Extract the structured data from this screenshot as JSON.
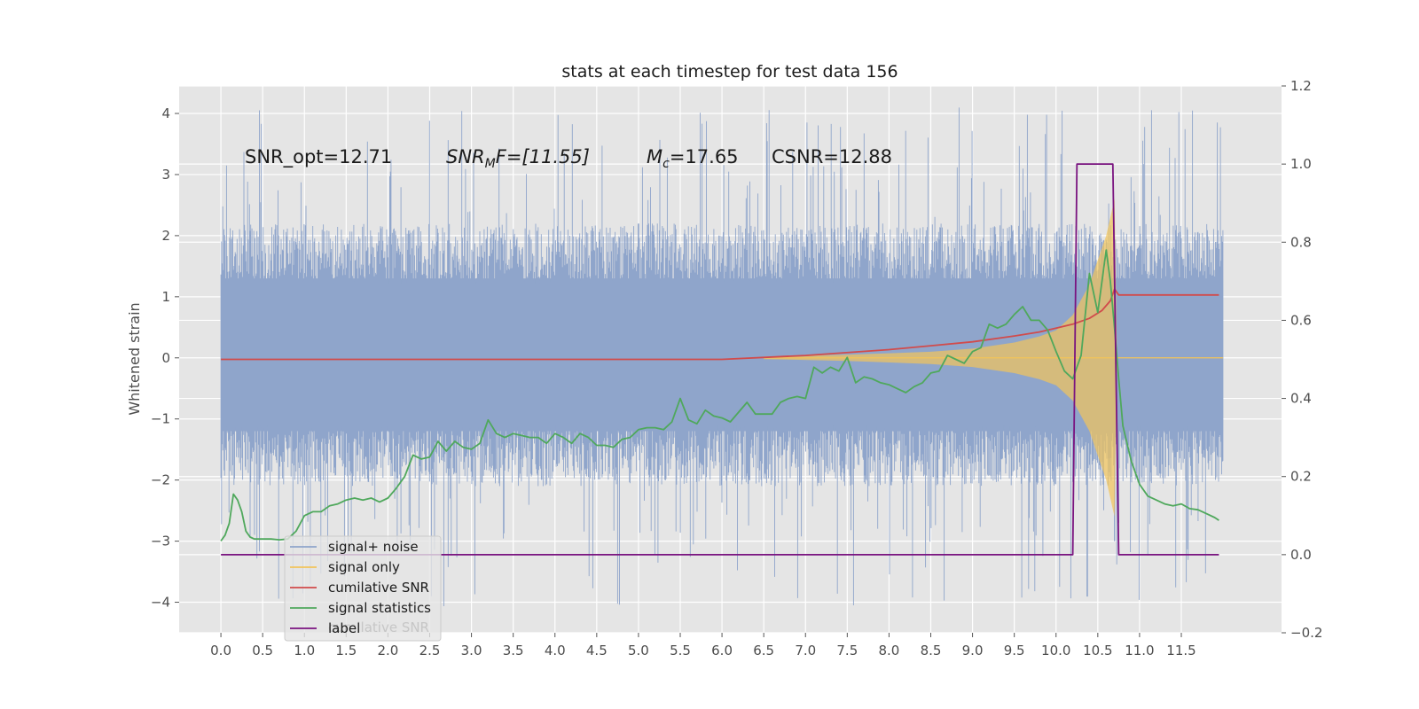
{
  "chart_data": {
    "type": "line",
    "title": "stats at each timestep for test data 156",
    "ylabel": "Whitened strain",
    "xlabel": "",
    "xlim": [
      -0.5,
      12.7
    ],
    "ylim": [
      -4.5,
      4.45
    ],
    "y2lim": [
      -0.2,
      1.2
    ],
    "xticks": [
      "0.0",
      "0.5",
      "1.0",
      "1.5",
      "2.0",
      "2.5",
      "3.0",
      "3.5",
      "4.0",
      "4.5",
      "5.0",
      "5.5",
      "6.0",
      "6.5",
      "7.0",
      "7.5",
      "8.0",
      "8.5",
      "9.0",
      "9.5",
      "10.0",
      "10.5",
      "11.0",
      "11.5"
    ],
    "yticks": [
      "4",
      "3",
      "2",
      "1",
      "0",
      "−1",
      "−2",
      "−3",
      "−4"
    ],
    "y2ticks": [
      "1.2",
      "1.0",
      "0.8",
      "0.6",
      "0.4",
      "0.2",
      "0.0",
      "−0.2"
    ],
    "grid": true,
    "legend_position": "lower-left",
    "annotations": {
      "snr_opt": "SNR_opt=12.71",
      "snr_mf_name": "SNR",
      "snr_mf_sub": "M",
      "snr_mf_rest": "F=[11.55]",
      "mc_name": "M",
      "mc_sub": "c",
      "mc_rest": "=17.65",
      "csnr": "CSNR=12.88"
    },
    "legend": [
      {
        "label": "signal+ noise",
        "color": "#8fa5cb"
      },
      {
        "label": "signal only",
        "color": "#f2c45a"
      },
      {
        "label": "cumilative SNR",
        "color": "#d14b4b"
      },
      {
        "label": "signal statistics",
        "color": "#4fa85c"
      },
      {
        "label": "label",
        "color": "#7a1480"
      }
    ],
    "legend_hidden_text": "cumilative SNR",
    "series": [
      {
        "name": "cumilative SNR",
        "axis": "right",
        "color": "#d14b4b",
        "x": [
          0.0,
          2.0,
          4.0,
          6.0,
          7.0,
          8.0,
          8.5,
          9.0,
          9.5,
          9.8,
          10.0,
          10.2,
          10.4,
          10.55,
          10.65,
          10.7,
          10.75,
          11.0,
          11.5,
          11.95
        ],
        "y": [
          0.5,
          0.5,
          0.5,
          0.5,
          0.51,
          0.525,
          0.535,
          0.545,
          0.56,
          0.57,
          0.58,
          0.59,
          0.605,
          0.625,
          0.65,
          0.68,
          0.665,
          0.665,
          0.665,
          0.665
        ]
      },
      {
        "name": "signal statistics",
        "axis": "right",
        "color": "#4fa85c",
        "x": [
          0.0,
          0.05,
          0.1,
          0.15,
          0.2,
          0.25,
          0.3,
          0.35,
          0.4,
          0.5,
          0.6,
          0.7,
          0.8,
          0.9,
          1.0,
          1.1,
          1.2,
          1.3,
          1.4,
          1.5,
          1.6,
          1.7,
          1.8,
          1.9,
          2.0,
          2.1,
          2.2,
          2.3,
          2.4,
          2.5,
          2.6,
          2.7,
          2.8,
          2.9,
          3.0,
          3.1,
          3.2,
          3.3,
          3.4,
          3.5,
          3.6,
          3.7,
          3.8,
          3.9,
          4.0,
          4.1,
          4.2,
          4.3,
          4.4,
          4.5,
          4.6,
          4.7,
          4.8,
          4.9,
          5.0,
          5.1,
          5.2,
          5.3,
          5.4,
          5.5,
          5.6,
          5.7,
          5.8,
          5.9,
          6.0,
          6.1,
          6.2,
          6.3,
          6.4,
          6.5,
          6.6,
          6.7,
          6.8,
          6.9,
          7.0,
          7.1,
          7.2,
          7.3,
          7.4,
          7.5,
          7.6,
          7.7,
          7.8,
          7.9,
          8.0,
          8.1,
          8.2,
          8.3,
          8.4,
          8.5,
          8.6,
          8.7,
          8.8,
          8.9,
          9.0,
          9.1,
          9.2,
          9.3,
          9.4,
          9.5,
          9.6,
          9.7,
          9.8,
          9.9,
          10.0,
          10.1,
          10.2,
          10.3,
          10.4,
          10.5,
          10.6,
          10.65,
          10.7,
          10.75,
          10.8,
          10.9,
          11.0,
          11.1,
          11.2,
          11.3,
          11.4,
          11.5,
          11.6,
          11.7,
          11.8,
          11.9,
          11.95
        ],
        "y": [
          0.035,
          0.05,
          0.08,
          0.155,
          0.14,
          0.11,
          0.06,
          0.045,
          0.04,
          0.04,
          0.04,
          0.038,
          0.04,
          0.06,
          0.1,
          0.11,
          0.11,
          0.125,
          0.13,
          0.14,
          0.145,
          0.14,
          0.145,
          0.135,
          0.145,
          0.17,
          0.2,
          0.255,
          0.245,
          0.25,
          0.29,
          0.265,
          0.29,
          0.275,
          0.27,
          0.285,
          0.345,
          0.31,
          0.3,
          0.31,
          0.305,
          0.3,
          0.3,
          0.285,
          0.31,
          0.3,
          0.285,
          0.31,
          0.3,
          0.28,
          0.28,
          0.275,
          0.295,
          0.3,
          0.32,
          0.325,
          0.325,
          0.32,
          0.34,
          0.4,
          0.345,
          0.335,
          0.37,
          0.355,
          0.35,
          0.34,
          0.365,
          0.39,
          0.36,
          0.36,
          0.36,
          0.39,
          0.4,
          0.405,
          0.4,
          0.48,
          0.465,
          0.48,
          0.47,
          0.505,
          0.44,
          0.455,
          0.45,
          0.44,
          0.435,
          0.425,
          0.415,
          0.43,
          0.44,
          0.465,
          0.47,
          0.51,
          0.5,
          0.49,
          0.52,
          0.53,
          0.59,
          0.58,
          0.59,
          0.615,
          0.635,
          0.6,
          0.6,
          0.575,
          0.52,
          0.47,
          0.45,
          0.51,
          0.72,
          0.62,
          0.78,
          0.7,
          0.58,
          0.45,
          0.33,
          0.24,
          0.18,
          0.15,
          0.14,
          0.13,
          0.125,
          0.13,
          0.118,
          0.115,
          0.105,
          0.095,
          0.088
        ]
      },
      {
        "name": "label",
        "axis": "right",
        "color": "#7a1480",
        "x": [
          0.0,
          10.2,
          10.25,
          10.68,
          10.75,
          11.95
        ],
        "y": [
          0.0,
          0.0,
          1.0,
          1.0,
          0.0,
          0.0
        ]
      }
    ],
    "noise_band": {
      "name": "signal+ noise",
      "color": "#8fa5cb",
      "x_range": [
        0.0,
        12.0
      ],
      "typical_range": [
        -1.7,
        1.8
      ],
      "peak_range": [
        -4.1,
        4.1
      ],
      "low_dip_x": [
        10.7,
        10.75
      ],
      "low_dip_y": -3.0
    },
    "signal_envelope": {
      "name": "signal only",
      "color": "#f2c45a",
      "x": [
        6.5,
        7.5,
        8.5,
        9.0,
        9.5,
        9.8,
        10.0,
        10.2,
        10.4,
        10.5,
        10.6,
        10.7,
        10.73
      ],
      "amp": [
        0.02,
        0.05,
        0.1,
        0.15,
        0.25,
        0.35,
        0.45,
        0.7,
        1.2,
        1.6,
        2.0,
        2.6,
        0.0
      ]
    }
  }
}
